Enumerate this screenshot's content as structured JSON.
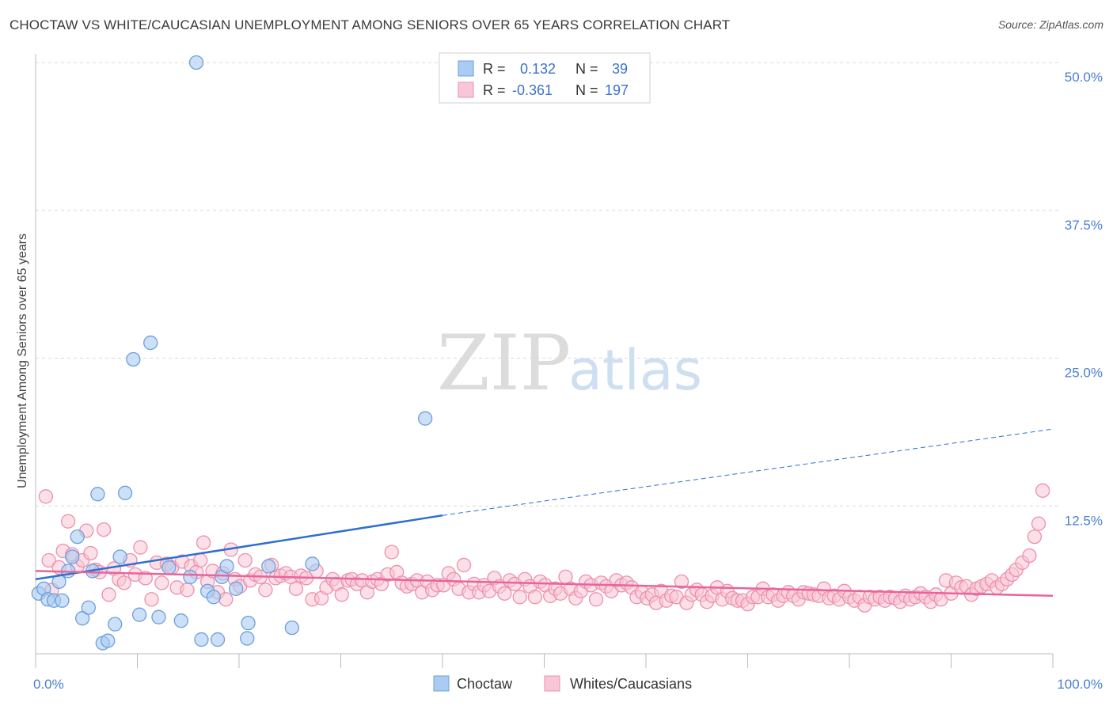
{
  "title": "CHOCTAW VS WHITE/CAUCASIAN UNEMPLOYMENT AMONG SENIORS OVER 65 YEARS CORRELATION CHART",
  "source": "Source: ZipAtlas.com",
  "watermark": {
    "zip": "ZIP",
    "atlas": "atlas"
  },
  "legend_top": {
    "rows": [
      {
        "r_label": "R =",
        "r_value": "0.132",
        "n_label": "N =",
        "n_value": "39"
      },
      {
        "r_label": "R =",
        "r_value": "-0.361",
        "n_label": "N =",
        "n_value": "197"
      }
    ]
  },
  "colors": {
    "choctaw_fill": "#aaccf2",
    "choctaw_stroke": "#6d9fdc",
    "choctaw_line": "#2e6fcf",
    "white_fill": "#f8c6d6",
    "white_stroke": "#ee8fae",
    "white_line": "#e8649a",
    "tick_text": "#4a7fd0",
    "grid": "#d9d9d9"
  },
  "chart_data": {
    "type": "scatter",
    "title": "CHOCTAW VS WHITE/CAUCASIAN UNEMPLOYMENT AMONG SENIORS OVER 65 YEARS CORRELATION CHART",
    "xlabel": "",
    "ylabel": "Unemployment Among Seniors over 65 years",
    "xlim": [
      0,
      100
    ],
    "ylim": [
      0,
      50
    ],
    "x_tick_labels": [
      "0.0%",
      "100.0%"
    ],
    "y_ticks": [
      12.5,
      25,
      37.5,
      50
    ],
    "y_tick_labels": [
      "12.5%",
      "25.0%",
      "37.5%",
      "50.0%"
    ],
    "grid": true,
    "legend_position": "bottom-center",
    "series": [
      {
        "name": "Choctaw",
        "R": 0.132,
        "N": 39,
        "trend": {
          "x0": 0,
          "y0": 6.3,
          "x1": 40,
          "y1": 11.7,
          "dashed_to_x": 100,
          "dashed_to_y": 19.0
        },
        "points": [
          [
            0.3,
            5.1
          ],
          [
            0.8,
            5.5
          ],
          [
            1.2,
            4.6
          ],
          [
            1.8,
            4.5
          ],
          [
            2.3,
            6.1
          ],
          [
            2.6,
            4.5
          ],
          [
            3.2,
            7.0
          ],
          [
            3.6,
            8.2
          ],
          [
            4.1,
            9.9
          ],
          [
            4.6,
            3.0
          ],
          [
            5.2,
            3.9
          ],
          [
            5.6,
            7.0
          ],
          [
            6.1,
            13.5
          ],
          [
            6.6,
            0.9
          ],
          [
            7.1,
            1.1
          ],
          [
            7.8,
            2.5
          ],
          [
            8.3,
            8.2
          ],
          [
            8.8,
            13.6
          ],
          [
            9.6,
            24.9
          ],
          [
            10.2,
            3.3
          ],
          [
            11.3,
            26.3
          ],
          [
            12.1,
            3.1
          ],
          [
            13.1,
            7.3
          ],
          [
            14.3,
            2.8
          ],
          [
            15.2,
            6.5
          ],
          [
            15.8,
            50.0
          ],
          [
            16.3,
            1.2
          ],
          [
            16.9,
            5.3
          ],
          [
            17.5,
            4.8
          ],
          [
            17.9,
            1.2
          ],
          [
            18.3,
            6.5
          ],
          [
            18.8,
            7.4
          ],
          [
            19.7,
            5.5
          ],
          [
            20.8,
            1.3
          ],
          [
            20.9,
            2.6
          ],
          [
            22.9,
            7.4
          ],
          [
            25.2,
            2.2
          ],
          [
            27.2,
            7.6
          ],
          [
            38.3,
            19.9
          ]
        ]
      },
      {
        "name": "Whites/Caucasians",
        "R": -0.361,
        "N": 197,
        "trend": {
          "x0": 0,
          "y0": 7.0,
          "x1": 100,
          "y1": 4.9
        },
        "points": [
          [
            1.0,
            13.3
          ],
          [
            1.3,
            7.9
          ],
          [
            1.6,
            5.4
          ],
          [
            2.3,
            7.3
          ],
          [
            2.7,
            8.7
          ],
          [
            3.2,
            11.2
          ],
          [
            3.6,
            8.4
          ],
          [
            4.1,
            7.4
          ],
          [
            4.6,
            7.9
          ],
          [
            5.0,
            10.4
          ],
          [
            5.4,
            8.5
          ],
          [
            5.9,
            7.1
          ],
          [
            6.3,
            6.9
          ],
          [
            6.7,
            10.5
          ],
          [
            7.2,
            5.0
          ],
          [
            7.7,
            7.2
          ],
          [
            8.2,
            6.3
          ],
          [
            8.7,
            6.0
          ],
          [
            9.3,
            7.9
          ],
          [
            9.8,
            6.7
          ],
          [
            10.3,
            9.0
          ],
          [
            10.8,
            6.4
          ],
          [
            11.4,
            4.6
          ],
          [
            11.9,
            7.7
          ],
          [
            12.4,
            6.0
          ],
          [
            12.9,
            7.6
          ],
          [
            13.4,
            7.3
          ],
          [
            13.9,
            5.6
          ],
          [
            14.4,
            7.8
          ],
          [
            14.9,
            5.4
          ],
          [
            15.3,
            7.4
          ],
          [
            15.8,
            6.9
          ],
          [
            16.2,
            7.9
          ],
          [
            16.5,
            9.4
          ],
          [
            16.9,
            6.1
          ],
          [
            17.4,
            7.0
          ],
          [
            17.9,
            5.2
          ],
          [
            18.4,
            6.8
          ],
          [
            18.7,
            4.6
          ],
          [
            19.2,
            8.8
          ],
          [
            19.6,
            6.3
          ],
          [
            20.1,
            5.7
          ],
          [
            20.6,
            7.9
          ],
          [
            21.1,
            6.2
          ],
          [
            21.6,
            6.7
          ],
          [
            22.1,
            6.5
          ],
          [
            22.6,
            5.4
          ],
          [
            23.2,
            7.5
          ],
          [
            23.6,
            6.4
          ],
          [
            24.1,
            6.6
          ],
          [
            24.6,
            6.8
          ],
          [
            25.1,
            6.5
          ],
          [
            25.6,
            5.5
          ],
          [
            26.1,
            6.6
          ],
          [
            26.6,
            6.4
          ],
          [
            27.2,
            4.6
          ],
          [
            27.6,
            7.0
          ],
          [
            28.1,
            4.7
          ],
          [
            28.6,
            5.6
          ],
          [
            29.2,
            6.3
          ],
          [
            29.6,
            5.9
          ],
          [
            30.1,
            5.0
          ],
          [
            30.7,
            6.2
          ],
          [
            31.1,
            6.3
          ],
          [
            31.6,
            5.9
          ],
          [
            32.1,
            6.2
          ],
          [
            32.6,
            5.2
          ],
          [
            33.1,
            6.1
          ],
          [
            33.6,
            6.3
          ],
          [
            34.0,
            5.9
          ],
          [
            34.6,
            6.7
          ],
          [
            35.0,
            8.6
          ],
          [
            35.5,
            6.9
          ],
          [
            36.0,
            6.0
          ],
          [
            36.5,
            5.7
          ],
          [
            37.0,
            5.9
          ],
          [
            37.5,
            6.2
          ],
          [
            38.0,
            5.2
          ],
          [
            38.5,
            6.1
          ],
          [
            39.0,
            5.4
          ],
          [
            39.5,
            5.8
          ],
          [
            40.1,
            5.8
          ],
          [
            40.6,
            6.8
          ],
          [
            41.1,
            6.3
          ],
          [
            41.6,
            5.5
          ],
          [
            42.1,
            7.5
          ],
          [
            42.6,
            5.2
          ],
          [
            43.1,
            5.9
          ],
          [
            43.6,
            5.2
          ],
          [
            44.1,
            5.8
          ],
          [
            44.6,
            5.3
          ],
          [
            45.1,
            6.4
          ],
          [
            45.6,
            5.7
          ],
          [
            46.1,
            5.1
          ],
          [
            46.6,
            6.2
          ],
          [
            47.1,
            5.9
          ],
          [
            47.6,
            4.8
          ],
          [
            48.1,
            6.3
          ],
          [
            48.6,
            5.7
          ],
          [
            49.1,
            4.8
          ],
          [
            49.6,
            6.1
          ],
          [
            50.1,
            5.8
          ],
          [
            50.6,
            4.9
          ],
          [
            51.1,
            5.5
          ],
          [
            51.6,
            5.1
          ],
          [
            52.1,
            6.5
          ],
          [
            52.6,
            5.5
          ],
          [
            53.1,
            4.7
          ],
          [
            53.6,
            5.3
          ],
          [
            54.1,
            6.1
          ],
          [
            54.6,
            5.8
          ],
          [
            55.1,
            4.6
          ],
          [
            55.6,
            6.0
          ],
          [
            56.1,
            5.7
          ],
          [
            56.6,
            5.3
          ],
          [
            57.1,
            6.2
          ],
          [
            57.6,
            5.8
          ],
          [
            58.1,
            6.0
          ],
          [
            58.6,
            5.6
          ],
          [
            59.1,
            4.8
          ],
          [
            59.6,
            5.2
          ],
          [
            60.1,
            4.7
          ],
          [
            60.6,
            5.0
          ],
          [
            61.0,
            4.3
          ],
          [
            61.5,
            5.3
          ],
          [
            62.0,
            4.5
          ],
          [
            62.5,
            4.9
          ],
          [
            63.0,
            4.8
          ],
          [
            63.5,
            6.1
          ],
          [
            64.0,
            4.3
          ],
          [
            64.5,
            5.0
          ],
          [
            65.0,
            5.4
          ],
          [
            65.5,
            5.0
          ],
          [
            66.0,
            4.4
          ],
          [
            66.5,
            4.9
          ],
          [
            67.0,
            5.6
          ],
          [
            67.5,
            4.6
          ],
          [
            68.0,
            5.3
          ],
          [
            68.5,
            4.7
          ],
          [
            69.0,
            4.5
          ],
          [
            69.5,
            4.5
          ],
          [
            70.0,
            4.2
          ],
          [
            70.5,
            4.8
          ],
          [
            71.0,
            4.8
          ],
          [
            71.5,
            5.5
          ],
          [
            72.0,
            4.8
          ],
          [
            72.5,
            5.0
          ],
          [
            73.0,
            4.5
          ],
          [
            73.5,
            4.9
          ],
          [
            74.0,
            5.2
          ],
          [
            74.5,
            4.9
          ],
          [
            75.0,
            4.6
          ],
          [
            75.5,
            5.2
          ],
          [
            76.0,
            5.1
          ],
          [
            76.5,
            5.0
          ],
          [
            77.0,
            4.9
          ],
          [
            77.5,
            5.5
          ],
          [
            78.0,
            4.7
          ],
          [
            78.5,
            4.9
          ],
          [
            79.0,
            4.6
          ],
          [
            79.5,
            5.3
          ],
          [
            80.0,
            4.8
          ],
          [
            80.5,
            4.5
          ],
          [
            81.0,
            4.8
          ],
          [
            81.5,
            4.1
          ],
          [
            82.0,
            4.8
          ],
          [
            82.5,
            4.6
          ],
          [
            83.0,
            4.8
          ],
          [
            83.5,
            4.5
          ],
          [
            84.0,
            4.8
          ],
          [
            84.5,
            4.7
          ],
          [
            85.0,
            4.4
          ],
          [
            85.5,
            4.9
          ],
          [
            86.0,
            4.6
          ],
          [
            86.5,
            4.8
          ],
          [
            87.0,
            5.1
          ],
          [
            87.5,
            4.8
          ],
          [
            88.0,
            4.4
          ],
          [
            88.5,
            5.0
          ],
          [
            89.0,
            4.6
          ],
          [
            89.5,
            6.2
          ],
          [
            90.0,
            5.1
          ],
          [
            90.5,
            6.0
          ],
          [
            91.0,
            5.6
          ],
          [
            91.5,
            5.7
          ],
          [
            92.0,
            5.0
          ],
          [
            92.5,
            5.5
          ],
          [
            93.0,
            5.7
          ],
          [
            93.5,
            5.9
          ],
          [
            94.0,
            6.2
          ],
          [
            94.5,
            5.6
          ],
          [
            95.0,
            5.9
          ],
          [
            95.5,
            6.3
          ],
          [
            96.0,
            6.7
          ],
          [
            96.4,
            7.1
          ],
          [
            97.0,
            7.7
          ],
          [
            97.7,
            8.3
          ],
          [
            98.2,
            9.9
          ],
          [
            98.6,
            11.0
          ],
          [
            99.0,
            13.8
          ]
        ]
      }
    ]
  }
}
